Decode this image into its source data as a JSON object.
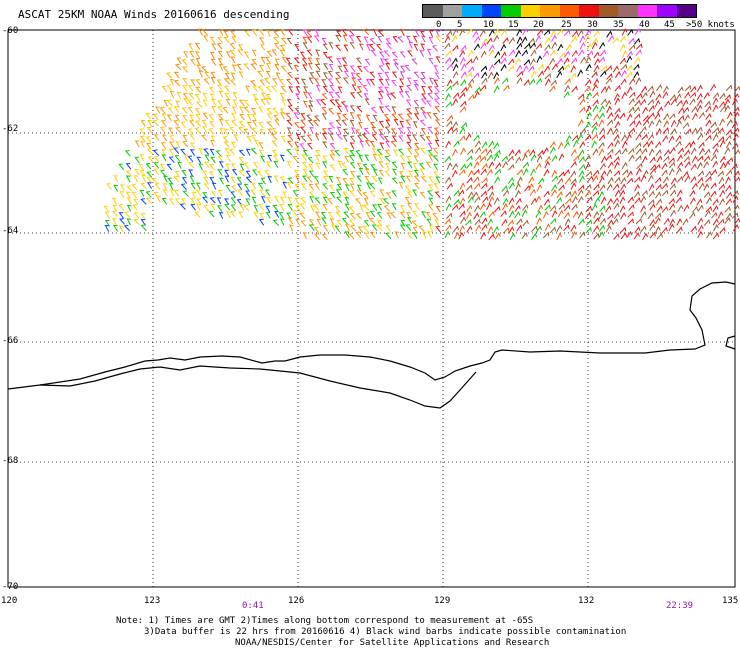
{
  "title": "ASCAT 25KM NOAA Winds 20160616 descending",
  "legend": {
    "labels": [
      "0",
      "5",
      "10",
      "15",
      "20",
      "25",
      "30",
      "35",
      "40",
      "45",
      ">50 knots"
    ],
    "colors": [
      "#5a5a5a",
      "#a0a0a0",
      "#00aaff",
      "#0044ff",
      "#00cc00",
      "#ffd000",
      "#ff9a00",
      "#ff5a00",
      "#ee1111",
      "#a05a2a",
      "#9a6a6a",
      "#ff33ff",
      "#a000ff",
      "#55008a"
    ]
  },
  "axes": {
    "lat_labels": [
      "-60",
      "-62",
      "-64",
      "-66",
      "-68",
      "-70"
    ],
    "lon_labels": [
      "120",
      "123",
      "126",
      "129",
      "132",
      "135"
    ]
  },
  "times": {
    "start": "0:41",
    "end": "22:39"
  },
  "notes": [
    "Note: 1) Times are GMT 2)Times along bottom correspond to measurement at -65S",
    "3)Data buffer is 22 hrs from 20160616 4) Black wind barbs indicate possible contamination",
    "NOAA/NESDIS/Center for Satellite Applications and Research"
  ]
}
